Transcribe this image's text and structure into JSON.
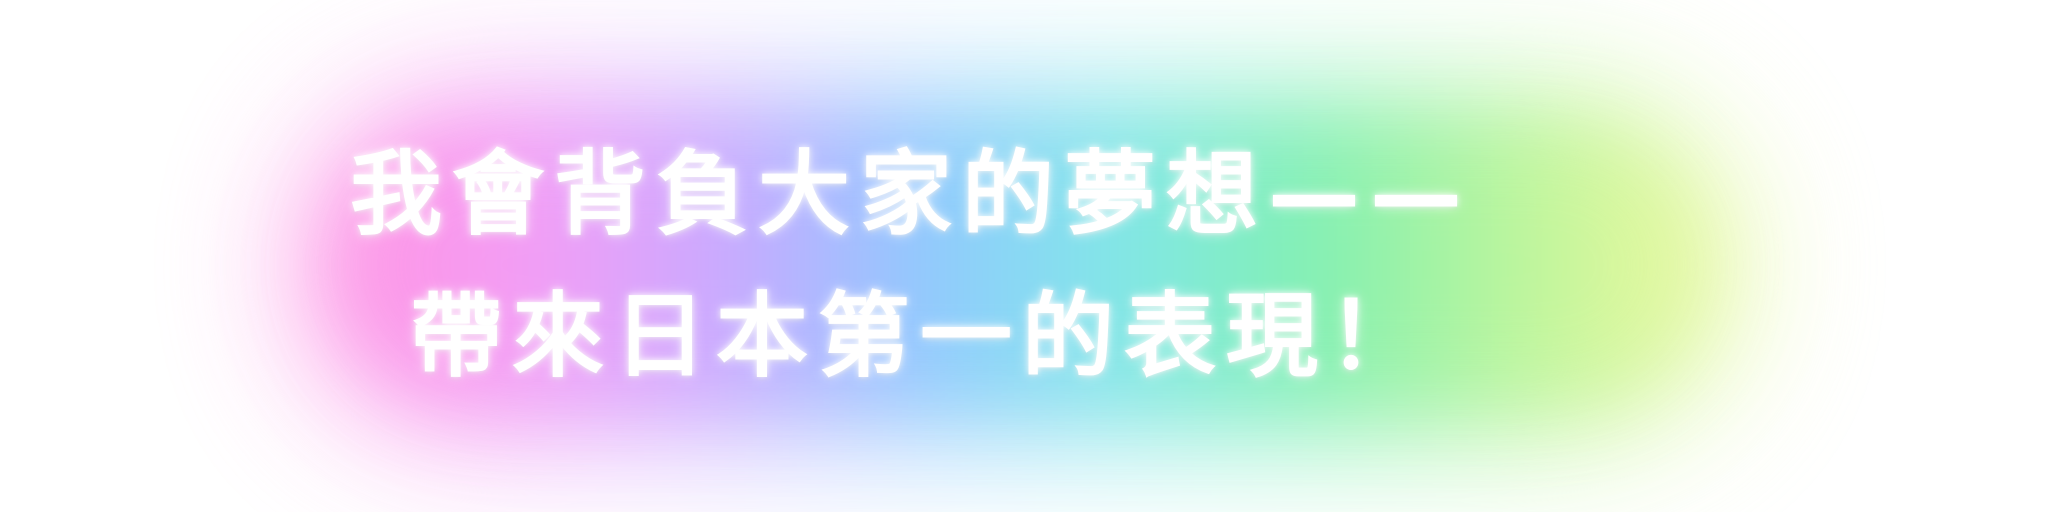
{
  "headline": {
    "line1": "我會背負大家的夢想——",
    "line2": "帶來日本第一的表現！"
  },
  "colors": {
    "text": "#ffffff",
    "glow_gradient": [
      "#ff8fe0",
      "#f49cf6",
      "#c9a8ff",
      "#8ec8ff",
      "#7fe7e8",
      "#7ff0b0",
      "#b9f59a",
      "#eef89a"
    ]
  }
}
